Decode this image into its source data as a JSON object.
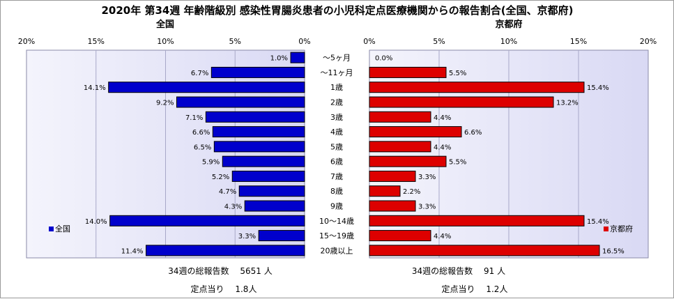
{
  "title": "2020年 第34週 年齢階級別 感染性胃腸炎患者の小児科定点医療機関からの報告割合(全国、京都府)",
  "chart_data": [
    {
      "type": "bar",
      "orientation": "horizontal",
      "direction": "right-to-left",
      "panel_title": "全国",
      "legend": "全国",
      "legend_position": "bottom-left",
      "color": "#0000cc",
      "xlim": [
        0,
        20
      ],
      "x_ticks": [
        "20%",
        "15%",
        "10%",
        "5%",
        "0%"
      ],
      "categories": [
        "～5ヶ月",
        "～11ヶ月",
        "1歳",
        "2歳",
        "3歳",
        "4歳",
        "5歳",
        "6歳",
        "7歳",
        "8歳",
        "9歳",
        "10～14歳",
        "15～19歳",
        "20歳以上"
      ],
      "values": [
        1.0,
        6.7,
        14.1,
        9.2,
        7.1,
        6.6,
        6.5,
        5.9,
        5.2,
        4.7,
        4.3,
        14.0,
        3.3,
        11.4
      ],
      "value_labels": [
        "1.0%",
        "6.7%",
        "14.1%",
        "9.2%",
        "7.1%",
        "6.6%",
        "6.5%",
        "5.9%",
        "5.2%",
        "4.7%",
        "4.3%",
        "14.0%",
        "3.3%",
        "11.4%"
      ],
      "grid": true
    },
    {
      "type": "bar",
      "orientation": "horizontal",
      "direction": "left-to-right",
      "panel_title": "京都府",
      "legend": "京都府",
      "legend_position": "bottom-right",
      "color": "#dd0000",
      "xlim": [
        0,
        20
      ],
      "x_ticks": [
        "0%",
        "5%",
        "10%",
        "15%",
        "20%"
      ],
      "categories": [
        "～5ヶ月",
        "～11ヶ月",
        "1歳",
        "2歳",
        "3歳",
        "4歳",
        "5歳",
        "6歳",
        "7歳",
        "8歳",
        "9歳",
        "10～14歳",
        "15～19歳",
        "20歳以上"
      ],
      "values": [
        0.0,
        5.5,
        15.4,
        13.2,
        4.4,
        6.6,
        4.4,
        5.5,
        3.3,
        2.2,
        3.3,
        15.4,
        4.4,
        16.5
      ],
      "value_labels": [
        "0.0%",
        "5.5%",
        "15.4%",
        "13.2%",
        "4.4%",
        "6.6%",
        "4.4%",
        "5.5%",
        "3.3%",
        "2.2%",
        "3.3%",
        "15.4%",
        "4.4%",
        "16.5%"
      ],
      "grid": true
    }
  ],
  "footer": {
    "national": {
      "total": "34週の総報告数　 5651 人",
      "per_site": "定点当り　 1.8人"
    },
    "kyoto": {
      "total": "34週の総報告数　 91 人",
      "per_site": "定点当り　 1.2人"
    }
  }
}
